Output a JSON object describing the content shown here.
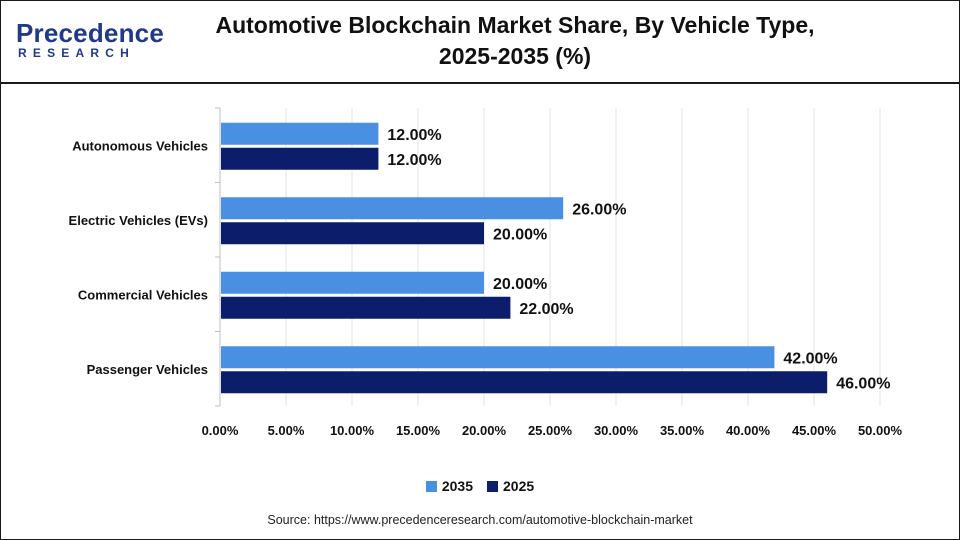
{
  "brand": {
    "name": "Precedence",
    "sub": "RESEARCH"
  },
  "chart_data": {
    "type": "bar",
    "orientation": "horizontal",
    "title_line1": "Automotive Blockchain Market Share, By Vehicle Type,",
    "title_line2": "2025-2035 (%)",
    "categories": [
      "Autonomous Vehicles",
      "Electric Vehicles (EVs)",
      "Commercial Vehicles",
      "Passenger Vehicles"
    ],
    "series": [
      {
        "name": "2035",
        "color": "#4a90e2",
        "values": [
          12,
          26,
          20,
          42
        ],
        "labels": [
          "12.00%",
          "26.00%",
          "20.00%",
          "42.00%"
        ]
      },
      {
        "name": "2025",
        "color": "#0b1d6b",
        "values": [
          12,
          20,
          22,
          46
        ],
        "labels": [
          "12.00%",
          "20.00%",
          "22.00%",
          "46.00%"
        ]
      }
    ],
    "xlim": [
      0,
      50
    ],
    "xticks": [
      0,
      5,
      10,
      15,
      20,
      25,
      30,
      35,
      40,
      45,
      50
    ],
    "xtick_labels": [
      "0.00%",
      "5.00%",
      "10.00%",
      "15.00%",
      "20.00%",
      "25.00%",
      "30.00%",
      "35.00%",
      "40.00%",
      "45.00%",
      "50.00%"
    ],
    "grid": true,
    "legend_position": "bottom"
  },
  "source": "Source: https://www.precedenceresearch.com/automotive-blockchain-market"
}
